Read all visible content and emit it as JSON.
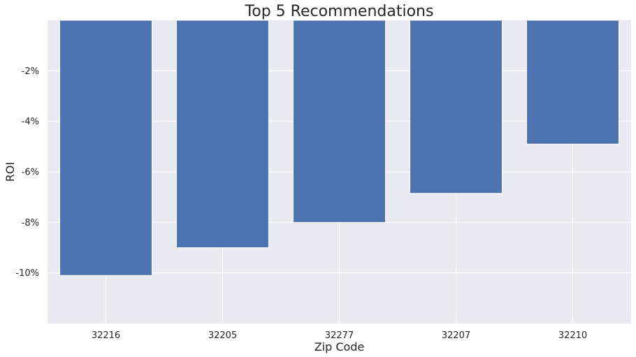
{
  "chart_data": {
    "type": "bar",
    "title": "Top 5 Recommendations",
    "xlabel": "Zip Code",
    "ylabel": "ROI",
    "categories": [
      "32216",
      "32205",
      "32277",
      "32207",
      "32210"
    ],
    "values": [
      -10.1,
      -9.0,
      -8.0,
      -6.85,
      -4.9
    ],
    "ylim": [
      -12,
      0
    ],
    "yticks": [
      -10,
      -8,
      -6,
      -4,
      -2
    ],
    "ytick_labels": [
      "-10%",
      "-8%",
      "-6%",
      "-4%",
      "-2%"
    ],
    "grid": true,
    "bar_color": "#4c72b0",
    "plot_background": "#eaeaf2",
    "grid_color": "#ffffff"
  }
}
